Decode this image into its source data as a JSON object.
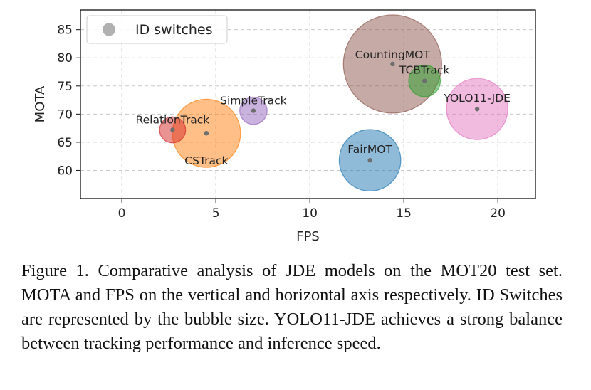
{
  "chart_data": {
    "type": "scatter",
    "variant": "bubble",
    "title": "",
    "xlabel": "FPS",
    "ylabel": "MOTA",
    "xlim": [
      -2.2,
      22
    ],
    "ylim": [
      55,
      88.5
    ],
    "xticks": [
      0,
      5,
      10,
      15,
      20
    ],
    "yticks": [
      60,
      65,
      70,
      75,
      80,
      85
    ],
    "grid": true,
    "legend": {
      "position": "top-left",
      "entries": [
        "ID switches"
      ]
    },
    "size_encoding": "ID switches",
    "points": [
      {
        "name": "RelationTrack",
        "fps": 2.7,
        "mota": 67.2,
        "id_switches": 1900,
        "color": "#d62728"
      },
      {
        "name": "CSTrack",
        "fps": 4.5,
        "mota": 66.6,
        "id_switches": 13000,
        "color": "#ff7f0e"
      },
      {
        "name": "SimpleTrack",
        "fps": 7.0,
        "mota": 70.6,
        "id_switches": 2100,
        "color": "#9467bd"
      },
      {
        "name": "FairMOT",
        "fps": 13.2,
        "mota": 61.8,
        "id_switches": 10600,
        "color": "#1f77b4"
      },
      {
        "name": "CountingMOT",
        "fps": 14.4,
        "mota": 78.9,
        "id_switches": 27000,
        "color": "#8c564b"
      },
      {
        "name": "TCBTrack",
        "fps": 16.1,
        "mota": 75.9,
        "id_switches": 2800,
        "color": "#2ca02c"
      },
      {
        "name": "YOLO11-JDE",
        "fps": 18.9,
        "mota": 70.9,
        "id_switches": 10500,
        "color": "#e377c2"
      }
    ]
  },
  "caption": "Figure 1. Comparative analysis of JDE models on the MOT20 test set. MOTA and FPS on the vertical and horizontal axis respectively. ID Switches are represented by the bubble size. YOLO11-JDE achieves a strong balance between tracking performance and inference speed."
}
